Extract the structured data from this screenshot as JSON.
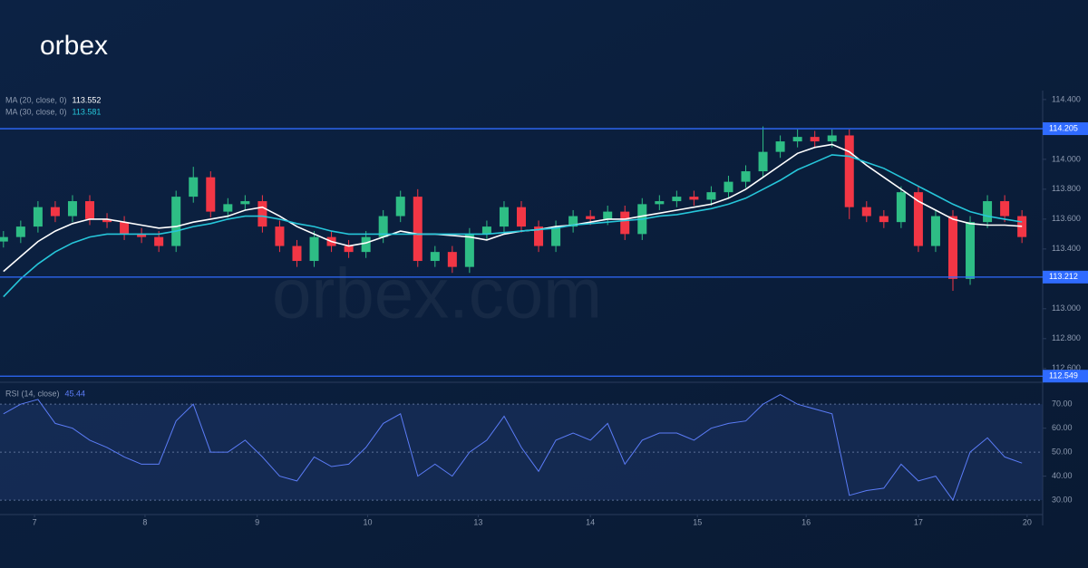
{
  "logo": "orbex",
  "watermark": "orbex.com",
  "chart_data": [
    {
      "type": "candlestick",
      "open": [
        113.45,
        113.48,
        113.55,
        113.68,
        113.62,
        113.72,
        113.6,
        113.58,
        113.5,
        113.48,
        113.42,
        113.75,
        113.88,
        113.65,
        113.7,
        113.72,
        113.55,
        113.42,
        113.32,
        113.48,
        113.42,
        113.38,
        113.48,
        113.62,
        113.75,
        113.32,
        113.38,
        113.28,
        113.5,
        113.55,
        113.68,
        113.55,
        113.42,
        113.55,
        113.62,
        113.6,
        113.65,
        113.5,
        113.7,
        113.72,
        113.75,
        113.73,
        113.78,
        113.85,
        113.92,
        114.05,
        114.12,
        114.15,
        114.12,
        114.16,
        113.68,
        113.62,
        113.58,
        113.78,
        113.42,
        113.62,
        113.2,
        113.58,
        113.72,
        113.62
      ],
      "high": [
        113.52,
        113.59,
        113.72,
        113.72,
        113.76,
        113.76,
        113.64,
        113.62,
        113.54,
        113.52,
        113.79,
        113.95,
        113.92,
        113.74,
        113.76,
        113.76,
        113.59,
        113.46,
        113.52,
        113.52,
        113.46,
        113.52,
        113.66,
        113.79,
        113.8,
        113.42,
        113.42,
        113.54,
        113.59,
        113.72,
        113.72,
        113.59,
        113.59,
        113.66,
        113.66,
        113.69,
        113.69,
        113.74,
        113.76,
        113.79,
        113.79,
        113.82,
        113.89,
        113.96,
        114.22,
        114.16,
        114.2,
        114.19,
        114.2,
        114.2,
        113.72,
        113.66,
        113.82,
        113.82,
        113.66,
        113.66,
        113.62,
        113.76,
        113.76,
        113.66
      ],
      "low": [
        113.41,
        113.44,
        113.51,
        113.58,
        113.58,
        113.56,
        113.54,
        113.46,
        113.44,
        113.38,
        113.38,
        113.71,
        113.61,
        113.61,
        113.66,
        113.51,
        113.38,
        113.28,
        113.28,
        113.38,
        113.34,
        113.34,
        113.44,
        113.58,
        113.28,
        113.28,
        113.24,
        113.24,
        113.46,
        113.51,
        113.51,
        113.38,
        113.38,
        113.51,
        113.56,
        113.56,
        113.46,
        113.46,
        113.66,
        113.68,
        113.69,
        113.69,
        113.74,
        113.81,
        113.88,
        114.01,
        114.08,
        114.08,
        114.08,
        113.6,
        113.58,
        113.54,
        113.54,
        113.38,
        113.38,
        113.12,
        113.16,
        113.54,
        113.58,
        113.44
      ],
      "close": [
        113.48,
        113.55,
        113.68,
        113.62,
        113.72,
        113.6,
        113.58,
        113.5,
        113.48,
        113.42,
        113.75,
        113.88,
        113.65,
        113.7,
        113.72,
        113.55,
        113.42,
        113.32,
        113.48,
        113.42,
        113.38,
        113.48,
        113.62,
        113.75,
        113.32,
        113.38,
        113.28,
        113.5,
        113.55,
        113.68,
        113.55,
        113.42,
        113.55,
        113.62,
        113.6,
        113.65,
        113.5,
        113.7,
        113.72,
        113.75,
        113.73,
        113.78,
        113.85,
        113.92,
        114.05,
        114.12,
        114.15,
        114.12,
        114.16,
        113.68,
        113.62,
        113.58,
        113.78,
        113.42,
        113.62,
        113.2,
        113.58,
        113.72,
        113.62,
        113.48
      ],
      "up_color": "#2ebd85",
      "down_color": "#f23645",
      "series": [
        {
          "name": "MA (20, close, 0)",
          "current": 113.552,
          "color": "#ffffff",
          "values": [
            113.25,
            113.35,
            113.45,
            113.52,
            113.57,
            113.6,
            113.6,
            113.58,
            113.56,
            113.54,
            113.55,
            113.58,
            113.6,
            113.62,
            113.66,
            113.68,
            113.62,
            113.55,
            113.5,
            113.45,
            113.42,
            113.44,
            113.48,
            113.52,
            113.5,
            113.5,
            113.49,
            113.48,
            113.46,
            113.5,
            113.52,
            113.53,
            113.55,
            113.56,
            113.58,
            113.6,
            113.6,
            113.62,
            113.64,
            113.66,
            113.68,
            113.7,
            113.74,
            113.8,
            113.88,
            113.96,
            114.04,
            114.08,
            114.1,
            114.05,
            113.96,
            113.88,
            113.8,
            113.72,
            113.66,
            113.6,
            113.57,
            113.56,
            113.56,
            113.552
          ]
        },
        {
          "name": "MA (30, close, 0)",
          "current": 113.581,
          "color": "#26c6da",
          "values": [
            113.08,
            113.2,
            113.3,
            113.38,
            113.44,
            113.48,
            113.5,
            113.5,
            113.5,
            113.5,
            113.52,
            113.55,
            113.57,
            113.6,
            113.62,
            113.62,
            113.6,
            113.57,
            113.55,
            113.52,
            113.5,
            113.5,
            113.5,
            113.5,
            113.5,
            113.5,
            113.5,
            113.5,
            113.5,
            113.51,
            113.52,
            113.53,
            113.54,
            113.56,
            113.57,
            113.58,
            113.59,
            113.6,
            113.62,
            113.63,
            113.65,
            113.67,
            113.7,
            113.74,
            113.8,
            113.86,
            113.93,
            113.98,
            114.03,
            114.02,
            113.98,
            113.94,
            113.88,
            113.82,
            113.76,
            113.7,
            113.65,
            113.62,
            113.6,
            113.581
          ]
        }
      ],
      "levels": [
        {
          "value": 114.205,
          "color": "#2f6bff"
        },
        {
          "value": 113.212,
          "color": "#2f6bff"
        },
        {
          "value": 112.549,
          "color": "#2f6bff"
        }
      ],
      "xlim": [
        -0.2,
        60.2
      ],
      "ylim": [
        112.52,
        114.46
      ],
      "yticks": [
        {
          "value": 114.4,
          "label": "114.400"
        },
        {
          "value": 114.2,
          "label": "114.200"
        },
        {
          "value": 114.0,
          "label": "114.000"
        },
        {
          "value": 113.8,
          "label": "113.800"
        },
        {
          "value": 113.6,
          "label": "113.600"
        },
        {
          "value": 113.4,
          "label": "113.400"
        },
        {
          "value": 113.2,
          "label": "113.200"
        },
        {
          "value": 113.0,
          "label": "113.000"
        },
        {
          "value": 112.8,
          "label": "112.800"
        },
        {
          "value": 112.6,
          "label": "112.600"
        }
      ]
    },
    {
      "type": "line",
      "series": [
        {
          "name": "RSI (14, close)",
          "current": 45.44,
          "color": "#5b7cf7",
          "values": [
            66,
            70,
            72,
            62,
            60,
            55,
            52,
            48,
            45,
            45,
            63,
            70,
            50,
            50,
            55,
            48,
            40,
            38,
            48,
            44,
            45,
            52,
            62,
            66,
            40,
            45,
            40,
            50,
            55,
            65,
            52,
            42,
            55,
            58,
            55,
            62,
            45,
            55,
            58,
            58,
            55,
            60,
            62,
            63,
            70,
            74,
            70,
            68,
            66,
            32,
            34,
            35,
            45,
            38,
            40,
            30,
            50,
            56,
            48,
            45.44
          ]
        }
      ],
      "xlim": [
        -0.2,
        60.2
      ],
      "ylim": [
        24,
        78
      ],
      "yticks": [
        {
          "value": 70,
          "label": "70.00"
        },
        {
          "value": 60,
          "label": "60.00"
        },
        {
          "value": 50,
          "label": "50.00"
        },
        {
          "value": 40,
          "label": "40.00"
        },
        {
          "value": 30,
          "label": "30.00"
        }
      ],
      "xticks": [
        {
          "value": 1.8,
          "label": "7"
        },
        {
          "value": 8.2,
          "label": "8"
        },
        {
          "value": 14.7,
          "label": "9"
        },
        {
          "value": 21.1,
          "label": "10"
        },
        {
          "value": 27.5,
          "label": "13"
        },
        {
          "value": 34.0,
          "label": "14"
        },
        {
          "value": 40.2,
          "label": "15"
        },
        {
          "value": 46.5,
          "label": "16"
        },
        {
          "value": 53.0,
          "label": "17"
        },
        {
          "value": 59.3,
          "label": "20"
        }
      ]
    }
  ]
}
